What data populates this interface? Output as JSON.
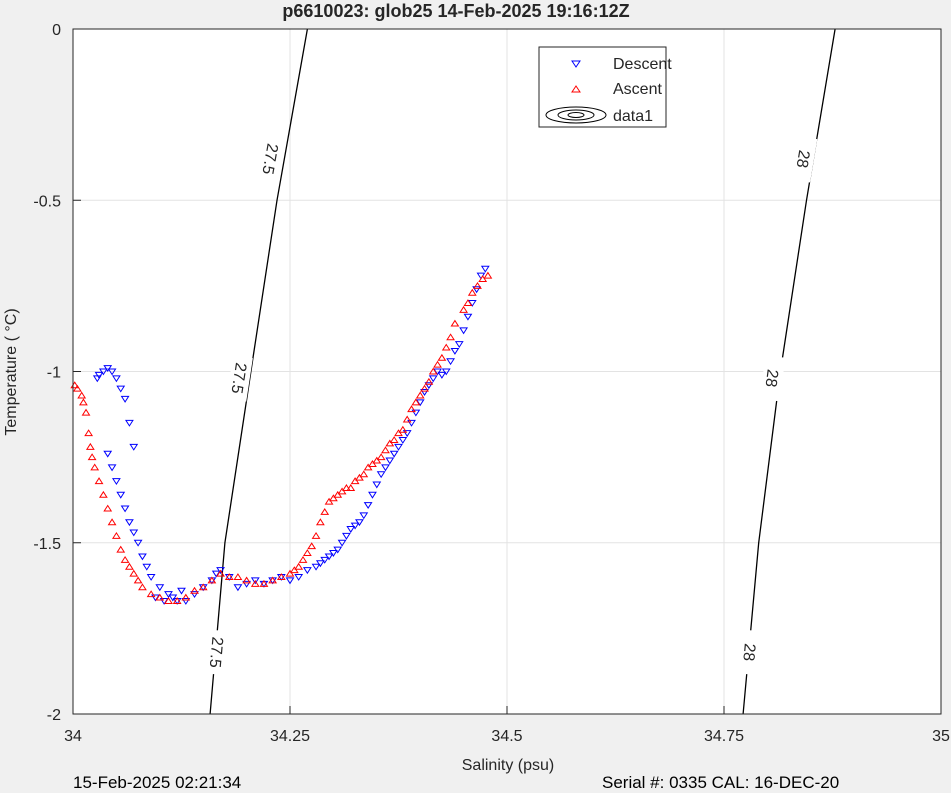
{
  "chart_data": {
    "type": "scatter",
    "title": "p6610023: glob25 14-Feb-2025 19:16:12Z",
    "xlabel": "Salinity (psu)",
    "ylabel": "Temperature (   °C)",
    "xlim": [
      34,
      35
    ],
    "ylim": [
      -2,
      0
    ],
    "x_ticks": [
      34,
      34.25,
      34.5,
      34.75,
      35
    ],
    "x_tick_labels": [
      "34",
      "34.25",
      "34.5",
      "34.75",
      "35"
    ],
    "y_ticks": [
      0,
      -0.5,
      -1,
      -1.5,
      -2
    ],
    "y_tick_labels": [
      "0",
      "-0.5",
      "-1",
      "-1.5",
      "-2"
    ],
    "grid": true,
    "legend_position": "top-center",
    "series": [
      {
        "name": "Descent",
        "marker": "triangle-down",
        "color": "#0000ff",
        "points": [
          [
            34.475,
            -0.7
          ],
          [
            34.47,
            -0.72
          ],
          [
            34.465,
            -0.76
          ],
          [
            34.46,
            -0.8
          ],
          [
            34.455,
            -0.84
          ],
          [
            34.45,
            -0.88
          ],
          [
            34.445,
            -0.92
          ],
          [
            34.44,
            -0.94
          ],
          [
            34.435,
            -0.97
          ],
          [
            34.43,
            -1.0
          ],
          [
            34.425,
            -1.01
          ],
          [
            34.42,
            -1.0
          ],
          [
            34.415,
            -1.02
          ],
          [
            34.41,
            -1.04
          ],
          [
            34.405,
            -1.06
          ],
          [
            34.4,
            -1.09
          ],
          [
            34.395,
            -1.12
          ],
          [
            34.39,
            -1.15
          ],
          [
            34.385,
            -1.18
          ],
          [
            34.38,
            -1.2
          ],
          [
            34.375,
            -1.22
          ],
          [
            34.37,
            -1.24
          ],
          [
            34.365,
            -1.26
          ],
          [
            34.36,
            -1.28
          ],
          [
            34.355,
            -1.3
          ],
          [
            34.35,
            -1.33
          ],
          [
            34.345,
            -1.36
          ],
          [
            34.34,
            -1.39
          ],
          [
            34.335,
            -1.42
          ],
          [
            34.33,
            -1.44
          ],
          [
            34.325,
            -1.45
          ],
          [
            34.32,
            -1.46
          ],
          [
            34.315,
            -1.48
          ],
          [
            34.31,
            -1.5
          ],
          [
            34.305,
            -1.52
          ],
          [
            34.3,
            -1.53
          ],
          [
            34.295,
            -1.54
          ],
          [
            34.29,
            -1.55
          ],
          [
            34.285,
            -1.56
          ],
          [
            34.28,
            -1.57
          ],
          [
            34.27,
            -1.58
          ],
          [
            34.26,
            -1.6
          ],
          [
            34.25,
            -1.61
          ],
          [
            34.24,
            -1.6
          ],
          [
            34.23,
            -1.61
          ],
          [
            34.22,
            -1.62
          ],
          [
            34.21,
            -1.61
          ],
          [
            34.2,
            -1.62
          ],
          [
            34.19,
            -1.63
          ],
          [
            34.18,
            -1.6
          ],
          [
            34.17,
            -1.58
          ],
          [
            34.165,
            -1.59
          ],
          [
            34.16,
            -1.61
          ],
          [
            34.15,
            -1.63
          ],
          [
            34.14,
            -1.65
          ],
          [
            34.13,
            -1.67
          ],
          [
            34.12,
            -1.67
          ],
          [
            34.11,
            -1.65
          ],
          [
            34.1,
            -1.63
          ],
          [
            34.09,
            -1.6
          ],
          [
            34.085,
            -1.57
          ],
          [
            34.08,
            -1.54
          ],
          [
            34.075,
            -1.5
          ],
          [
            34.07,
            -1.47
          ],
          [
            34.065,
            -1.44
          ],
          [
            34.06,
            -1.4
          ],
          [
            34.055,
            -1.36
          ],
          [
            34.05,
            -1.32
          ],
          [
            34.045,
            -1.28
          ],
          [
            34.04,
            -1.24
          ],
          [
            34.07,
            -1.22
          ],
          [
            34.065,
            -1.15
          ],
          [
            34.06,
            -1.08
          ],
          [
            34.055,
            -1.05
          ],
          [
            34.05,
            -1.02
          ],
          [
            34.045,
            -1.0
          ],
          [
            34.04,
            -0.99
          ],
          [
            34.035,
            -1.0
          ],
          [
            34.03,
            -1.01
          ],
          [
            34.028,
            -1.02
          ],
          [
            34.095,
            -1.66
          ],
          [
            34.105,
            -1.67
          ],
          [
            34.115,
            -1.66
          ],
          [
            34.125,
            -1.64
          ]
        ]
      },
      {
        "name": "Ascent",
        "marker": "triangle-up",
        "color": "#ff0000",
        "points": [
          [
            34.478,
            -0.72
          ],
          [
            34.472,
            -0.73
          ],
          [
            34.466,
            -0.75
          ],
          [
            34.46,
            -0.77
          ],
          [
            34.455,
            -0.8
          ],
          [
            34.45,
            -0.82
          ],
          [
            34.44,
            -0.86
          ],
          [
            34.435,
            -0.9
          ],
          [
            34.43,
            -0.93
          ],
          [
            34.425,
            -0.96
          ],
          [
            34.42,
            -0.98
          ],
          [
            34.415,
            -1.0
          ],
          [
            34.41,
            -1.03
          ],
          [
            34.405,
            -1.05
          ],
          [
            34.4,
            -1.07
          ],
          [
            34.395,
            -1.09
          ],
          [
            34.39,
            -1.11
          ],
          [
            34.385,
            -1.14
          ],
          [
            34.38,
            -1.17
          ],
          [
            34.375,
            -1.18
          ],
          [
            34.37,
            -1.2
          ],
          [
            34.365,
            -1.21
          ],
          [
            34.36,
            -1.23
          ],
          [
            34.355,
            -1.25
          ],
          [
            34.35,
            -1.26
          ],
          [
            34.345,
            -1.27
          ],
          [
            34.34,
            -1.28
          ],
          [
            34.335,
            -1.3
          ],
          [
            34.33,
            -1.31
          ],
          [
            34.325,
            -1.32
          ],
          [
            34.32,
            -1.34
          ],
          [
            34.315,
            -1.34
          ],
          [
            34.31,
            -1.35
          ],
          [
            34.305,
            -1.36
          ],
          [
            34.3,
            -1.37
          ],
          [
            34.295,
            -1.38
          ],
          [
            34.29,
            -1.41
          ],
          [
            34.285,
            -1.44
          ],
          [
            34.28,
            -1.48
          ],
          [
            34.275,
            -1.51
          ],
          [
            34.27,
            -1.53
          ],
          [
            34.265,
            -1.55
          ],
          [
            34.26,
            -1.57
          ],
          [
            34.255,
            -1.58
          ],
          [
            34.25,
            -1.59
          ],
          [
            34.24,
            -1.6
          ],
          [
            34.23,
            -1.61
          ],
          [
            34.22,
            -1.62
          ],
          [
            34.21,
            -1.62
          ],
          [
            34.2,
            -1.61
          ],
          [
            34.19,
            -1.6
          ],
          [
            34.18,
            -1.6
          ],
          [
            34.17,
            -1.59
          ],
          [
            34.16,
            -1.61
          ],
          [
            34.15,
            -1.63
          ],
          [
            34.14,
            -1.64
          ],
          [
            34.13,
            -1.66
          ],
          [
            34.12,
            -1.67
          ],
          [
            34.11,
            -1.67
          ],
          [
            34.1,
            -1.66
          ],
          [
            34.09,
            -1.65
          ],
          [
            34.08,
            -1.63
          ],
          [
            34.075,
            -1.61
          ],
          [
            34.07,
            -1.59
          ],
          [
            34.065,
            -1.57
          ],
          [
            34.06,
            -1.55
          ],
          [
            34.055,
            -1.52
          ],
          [
            34.05,
            -1.48
          ],
          [
            34.045,
            -1.44
          ],
          [
            34.04,
            -1.4
          ],
          [
            34.035,
            -1.36
          ],
          [
            34.03,
            -1.32
          ],
          [
            34.025,
            -1.28
          ],
          [
            34.022,
            -1.25
          ],
          [
            34.02,
            -1.22
          ],
          [
            34.018,
            -1.18
          ],
          [
            34.015,
            -1.12
          ],
          [
            34.012,
            -1.09
          ],
          [
            34.01,
            -1.07
          ],
          [
            34.005,
            -1.05
          ],
          [
            34.002,
            -1.04
          ]
        ]
      }
    ],
    "contours": [
      {
        "name": "data1",
        "level_label": "27.5",
        "points": [
          [
            34.158,
            -2.0
          ],
          [
            34.175,
            -1.5
          ],
          [
            34.205,
            -1.0
          ],
          [
            34.235,
            -0.5
          ],
          [
            34.27,
            0.0
          ]
        ],
        "label_positions": [
          [
            34.166,
            -1.82
          ],
          [
            34.192,
            -1.02
          ],
          [
            34.228,
            -0.38
          ]
        ]
      },
      {
        "name": "data1",
        "level_label": "28",
        "points": [
          [
            34.772,
            -2.0
          ],
          [
            34.79,
            -1.5
          ],
          [
            34.815,
            -1.0
          ],
          [
            34.845,
            -0.5
          ],
          [
            34.878,
            0.0
          ]
        ],
        "label_positions": [
          [
            34.78,
            -1.82
          ],
          [
            34.806,
            -1.02
          ],
          [
            34.842,
            -0.38
          ]
        ]
      }
    ],
    "legend": [
      "Descent",
      "Ascent",
      "data1"
    ]
  },
  "footer": {
    "timestamp": "15-Feb-2025 02:21:34",
    "serial": "Serial #: 0335  CAL: 16-DEC-20"
  }
}
